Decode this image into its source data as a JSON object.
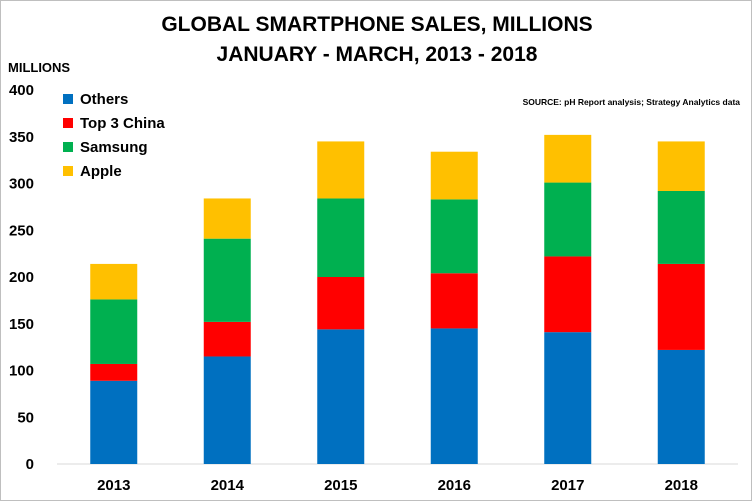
{
  "chart_data": {
    "type": "bar",
    "stacked": true,
    "title_line1": "GLOBAL SMARTPHONE SALES, MILLIONS",
    "title_line2": "JANUARY - MARCH, 2013 - 2018",
    "ylabel": "MILLIONS",
    "source": "SOURCE: pH Report analysis; Strategy Analytics data",
    "categories": [
      "2013",
      "2014",
      "2015",
      "2016",
      "2017",
      "2018"
    ],
    "yticks": [
      0,
      50,
      100,
      150,
      200,
      250,
      300,
      350,
      400
    ],
    "ylim": [
      0,
      400
    ],
    "grid": false,
    "legend_position": "top-left",
    "series": [
      {
        "name": "Others",
        "color": "#0070C0",
        "values": [
          89,
          115,
          144,
          145,
          141,
          122
        ]
      },
      {
        "name": "Top 3 China",
        "color": "#FF0000",
        "values": [
          18,
          37,
          56,
          59,
          81,
          92
        ]
      },
      {
        "name": "Samsung",
        "color": "#00B050",
        "values": [
          69,
          89,
          84,
          79,
          79,
          78
        ]
      },
      {
        "name": "Apple",
        "color": "#FFC000",
        "values": [
          38,
          43,
          61,
          51,
          51,
          53
        ]
      }
    ]
  }
}
